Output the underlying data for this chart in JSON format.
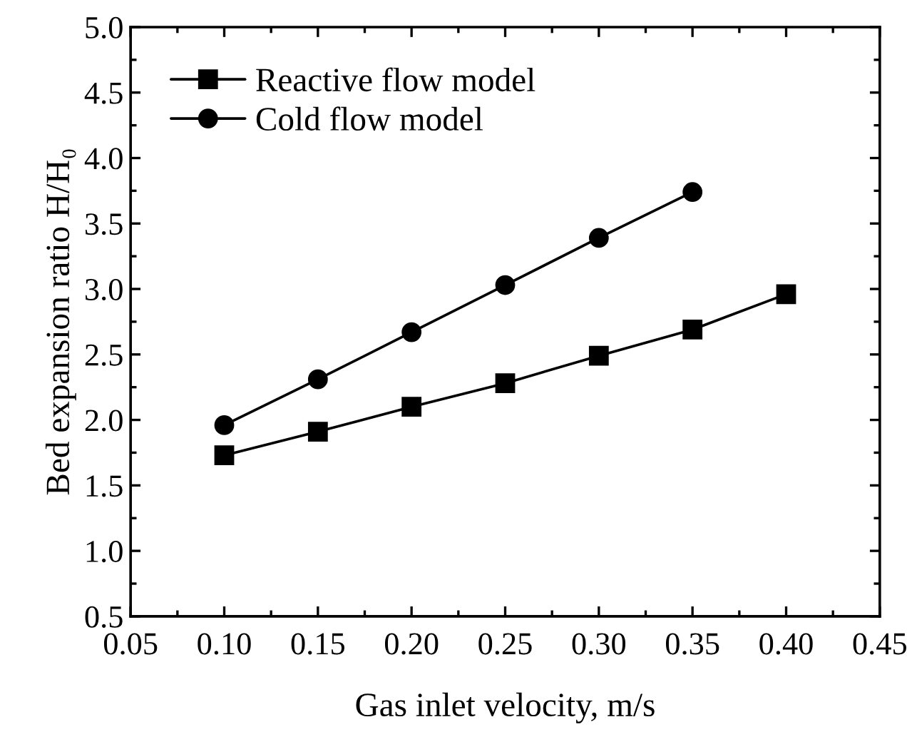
{
  "chart_data": {
    "type": "line",
    "xlabel": "Gas inlet velocity, m/s",
    "ylabel": "Bed expansion ratio H/H₀",
    "x": [
      0.1,
      0.15,
      0.2,
      0.25,
      0.3,
      0.35,
      0.4
    ],
    "series": [
      {
        "name": "Reactive flow model",
        "color": "#000000",
        "marker": "square",
        "values": [
          1.73,
          1.91,
          2.1,
          2.28,
          2.49,
          2.69,
          2.96
        ]
      },
      {
        "name": "Cold flow model",
        "color": "#000000",
        "marker": "circle",
        "x": [
          0.1,
          0.15,
          0.2,
          0.25,
          0.3,
          0.35
        ],
        "values": [
          1.96,
          2.31,
          2.67,
          3.03,
          3.39,
          3.74
        ]
      }
    ],
    "xlim": [
      0.05,
      0.45
    ],
    "xticks": [
      {
        "value": 0.05,
        "label": "0.05"
      },
      {
        "value": 0.1,
        "label": "0.10"
      },
      {
        "value": 0.15,
        "label": "0.15"
      },
      {
        "value": 0.2,
        "label": "0.20"
      },
      {
        "value": 0.25,
        "label": "0.25"
      },
      {
        "value": 0.3,
        "label": "0.30"
      },
      {
        "value": 0.35,
        "label": "0.35"
      },
      {
        "value": 0.4,
        "label": "0.40"
      },
      {
        "value": 0.45,
        "label": "0.45"
      }
    ],
    "ylim": [
      0.5,
      5.0
    ],
    "yticks": [
      {
        "value": 0.5,
        "label": "0.5"
      },
      {
        "value": 1.0,
        "label": "1.0"
      },
      {
        "value": 1.5,
        "label": "1.5"
      },
      {
        "value": 2.0,
        "label": "2.0"
      },
      {
        "value": 2.5,
        "label": "2.5"
      },
      {
        "value": 3.0,
        "label": "3.0"
      },
      {
        "value": 3.5,
        "label": "3.5"
      },
      {
        "value": 4.0,
        "label": "4.0"
      },
      {
        "value": 4.5,
        "label": "4.5"
      },
      {
        "value": 5.0,
        "label": "5.0"
      }
    ],
    "grid": false,
    "legend": "top left",
    "line_style": "solid"
  }
}
